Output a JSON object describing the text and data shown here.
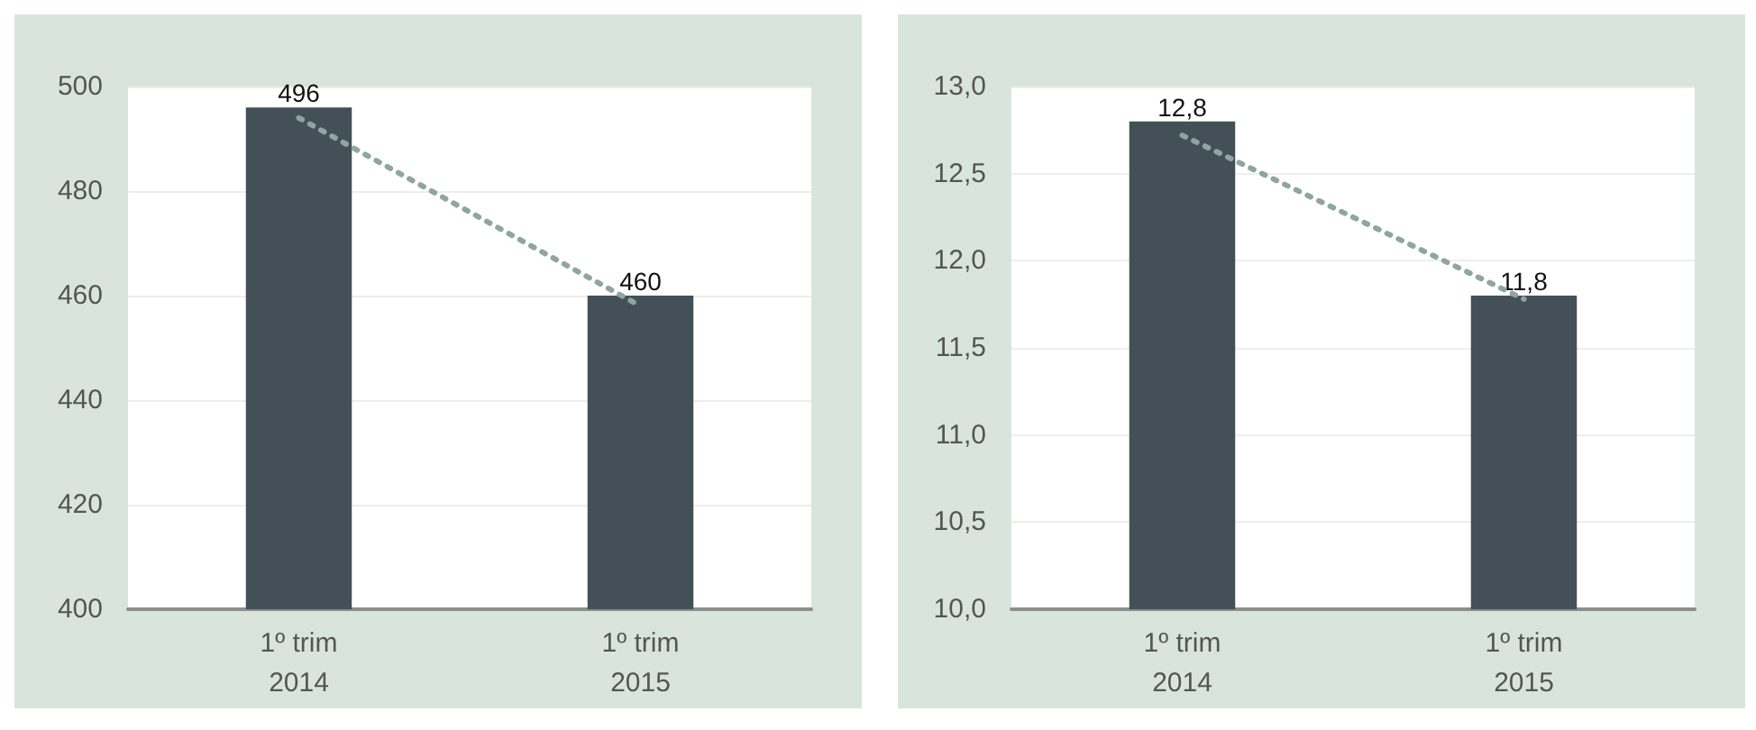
{
  "chart_data": [
    {
      "type": "bar",
      "categories": [
        "1º trim\n2014",
        "1º trim\n2015"
      ],
      "series": [
        {
          "color": "#435058",
          "values": [
            496,
            460
          ],
          "value_labels": [
            "496",
            "460"
          ]
        },
        {
          "type": "line",
          "color": "#8fa5a0",
          "values": [
            494,
            458
          ],
          "line_style": "dotted",
          "marker": "none"
        }
      ],
      "ylim": [
        400,
        500
      ],
      "yticks": [
        400,
        420,
        440,
        460,
        480,
        500
      ],
      "grid": "y"
    },
    {
      "type": "bar",
      "categories": [
        "1º trim\n2014",
        "1º trim\n2015"
      ],
      "series": [
        {
          "color": "#435058",
          "values": [
            12.8,
            11.8
          ],
          "value_labels": [
            "12,8",
            "11,8"
          ]
        },
        {
          "type": "line",
          "color": "#8fa5a0",
          "values": [
            12.72,
            11.78
          ],
          "line_style": "dotted",
          "marker": "none"
        }
      ],
      "ylim": [
        10,
        13
      ],
      "yticks": [
        {
          "value": 10,
          "label": "10,0"
        },
        {
          "value": 10.5,
          "label": "10,5"
        },
        {
          "value": 11,
          "label": "11,0"
        },
        {
          "value": 11.5,
          "label": "11,5"
        },
        {
          "value": 12,
          "label": "12,0"
        },
        {
          "value": 12.5,
          "label": "12,5"
        },
        {
          "value": 13,
          "label": "13,0"
        }
      ],
      "grid": "y"
    }
  ]
}
